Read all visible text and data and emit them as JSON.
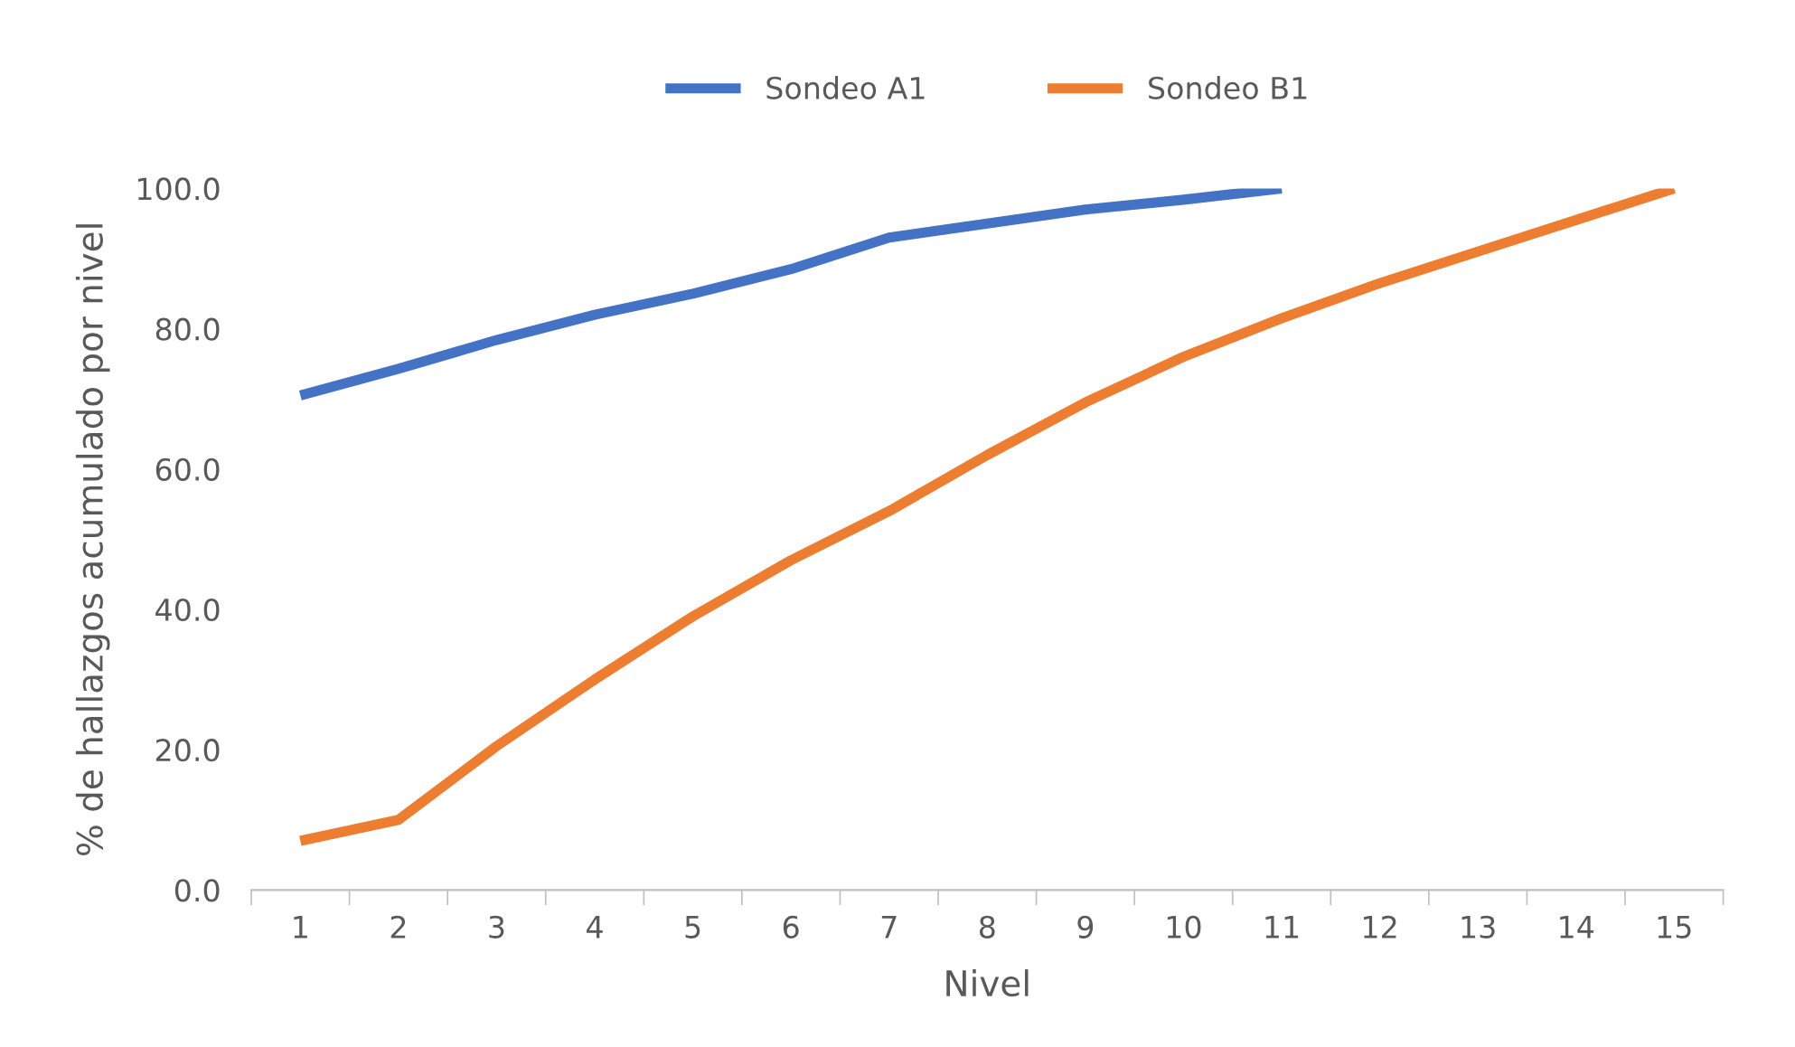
{
  "chart_data": {
    "type": "line",
    "xlabel": "Nivel",
    "ylabel": "% de hallazgos acumulado por nivel",
    "categories": [
      "1",
      "2",
      "3",
      "4",
      "5",
      "6",
      "7",
      "8",
      "9",
      "10",
      "11",
      "12",
      "13",
      "14",
      "15"
    ],
    "series": [
      {
        "name": "Sondeo A1",
        "color": "#4472c4",
        "values": [
          70.5,
          74.3,
          78.4,
          82.0,
          85.0,
          88.5,
          93.0,
          95.0,
          97.0,
          98.4,
          100.0,
          null,
          null,
          null,
          null
        ]
      },
      {
        "name": "Sondeo B1",
        "color": "#ed7d31",
        "values": [
          7.0,
          10.0,
          20.5,
          30.0,
          39.0,
          47.0,
          54.0,
          62.0,
          69.5,
          76.0,
          81.5,
          86.5,
          91.0,
          95.5,
          100.0
        ]
      }
    ],
    "ylim": [
      0,
      100
    ],
    "yticks": [
      {
        "value": 0,
        "label": "0.0"
      },
      {
        "value": 20,
        "label": "20.0"
      },
      {
        "value": 40,
        "label": "40.0"
      },
      {
        "value": 60,
        "label": "60.0"
      },
      {
        "value": 80,
        "label": "80.0"
      },
      {
        "value": 100,
        "label": "100.0"
      }
    ],
    "grid": false,
    "legend": "top",
    "marker": "none",
    "line_style": "solid"
  }
}
